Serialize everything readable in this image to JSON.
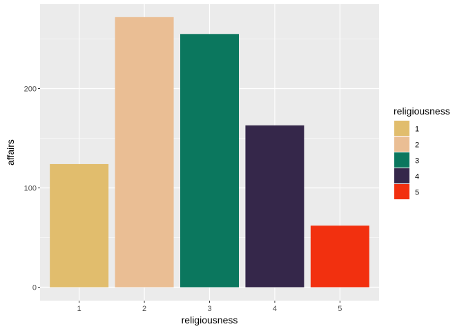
{
  "chart_data": {
    "type": "bar",
    "categories": [
      "1",
      "2",
      "3",
      "4",
      "5"
    ],
    "values": [
      124,
      272,
      255,
      163,
      62
    ],
    "colors": [
      "#E1BD6D",
      "#EABE94",
      "#0B775E",
      "#35274A",
      "#F2300F"
    ],
    "xlabel": "religiousness",
    "ylabel": "affairs",
    "ylim": [
      0,
      285
    ],
    "yticks": [
      0,
      100,
      200
    ],
    "ytick_labels": [
      "0",
      "100",
      "200"
    ],
    "xtick_labels": [
      "1",
      "2",
      "3",
      "4",
      "5"
    ],
    "grid": true,
    "panel_background": "#EBEBEB",
    "grid_color": "#FFFFFF",
    "legend": {
      "title": "religiousness",
      "position": "right",
      "entries": [
        "1",
        "2",
        "3",
        "4",
        "5"
      ]
    }
  }
}
